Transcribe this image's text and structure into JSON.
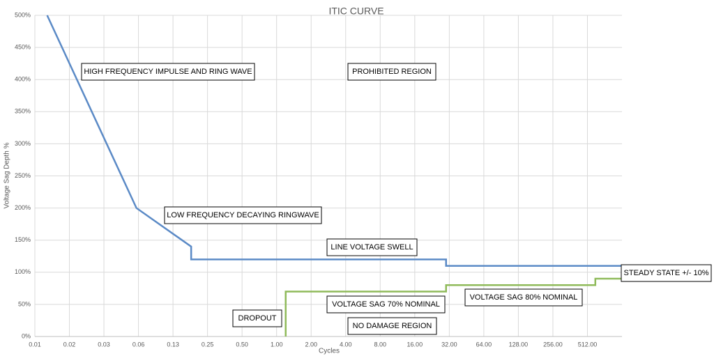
{
  "chart_data": {
    "type": "line",
    "title": "ITIC CURVE",
    "x_label": "Cycles",
    "y_label": "Voltage Sag Depth %",
    "x_scale": "log",
    "grid": true,
    "xlim": [
      0.0078125,
      1024
    ],
    "xticks": [
      {
        "value": 0.0078125,
        "label": "0.01"
      },
      {
        "value": 0.015625,
        "label": "0.02"
      },
      {
        "value": 0.03125,
        "label": "0.03"
      },
      {
        "value": 0.0625,
        "label": "0.06"
      },
      {
        "value": 0.125,
        "label": "0.13"
      },
      {
        "value": 0.25,
        "label": "0.25"
      },
      {
        "value": 0.5,
        "label": "0.50"
      },
      {
        "value": 1,
        "label": "1.00"
      },
      {
        "value": 2,
        "label": "2.00"
      },
      {
        "value": 4,
        "label": "4.00"
      },
      {
        "value": 8,
        "label": "8.00"
      },
      {
        "value": 16,
        "label": "16.00"
      },
      {
        "value": 32,
        "label": "32.00"
      },
      {
        "value": 64,
        "label": "64.00"
      },
      {
        "value": 128,
        "label": "128.00"
      },
      {
        "value": 256,
        "label": "256.00"
      },
      {
        "value": 512,
        "label": "512.00"
      }
    ],
    "ylim": [
      0,
      500
    ],
    "yticks": [
      {
        "value": 0,
        "label": "0%"
      },
      {
        "value": 50,
        "label": "50%"
      },
      {
        "value": 100,
        "label": "100%"
      },
      {
        "value": 150,
        "label": "150%"
      },
      {
        "value": 200,
        "label": "200%"
      },
      {
        "value": 250,
        "label": "250%"
      },
      {
        "value": 300,
        "label": "300%"
      },
      {
        "value": 350,
        "label": "350%"
      },
      {
        "value": 400,
        "label": "400%"
      },
      {
        "value": 450,
        "label": "450%"
      },
      {
        "value": 500,
        "label": "500%"
      }
    ],
    "series": [
      {
        "color": "#5b8ac6",
        "x": [
          0.01,
          0.06,
          0.18,
          0.18,
          30,
          30,
          1024
        ],
        "values": [
          500,
          200,
          140,
          120,
          120,
          110,
          110
        ]
      },
      {
        "color": "#8fba5a",
        "x": [
          1.2,
          1.2,
          30,
          30,
          600,
          600,
          1024
        ],
        "values": [
          0,
          70,
          70,
          80,
          80,
          90,
          90
        ]
      }
    ],
    "annotations": [
      "HIGH FREQUENCY IMPULSE AND RING WAVE",
      "PROHIBITED REGION",
      "LOW FREQUENCY DECAYING RINGWAVE",
      "LINE VOLTAGE SWELL",
      "STEADY STATE +/- 10%",
      "VOLTAGE SAG 80% NOMINAL",
      "DROPOUT",
      "VOLTAGE SAG 70% NOMINAL",
      "NO DAMAGE REGION"
    ]
  }
}
